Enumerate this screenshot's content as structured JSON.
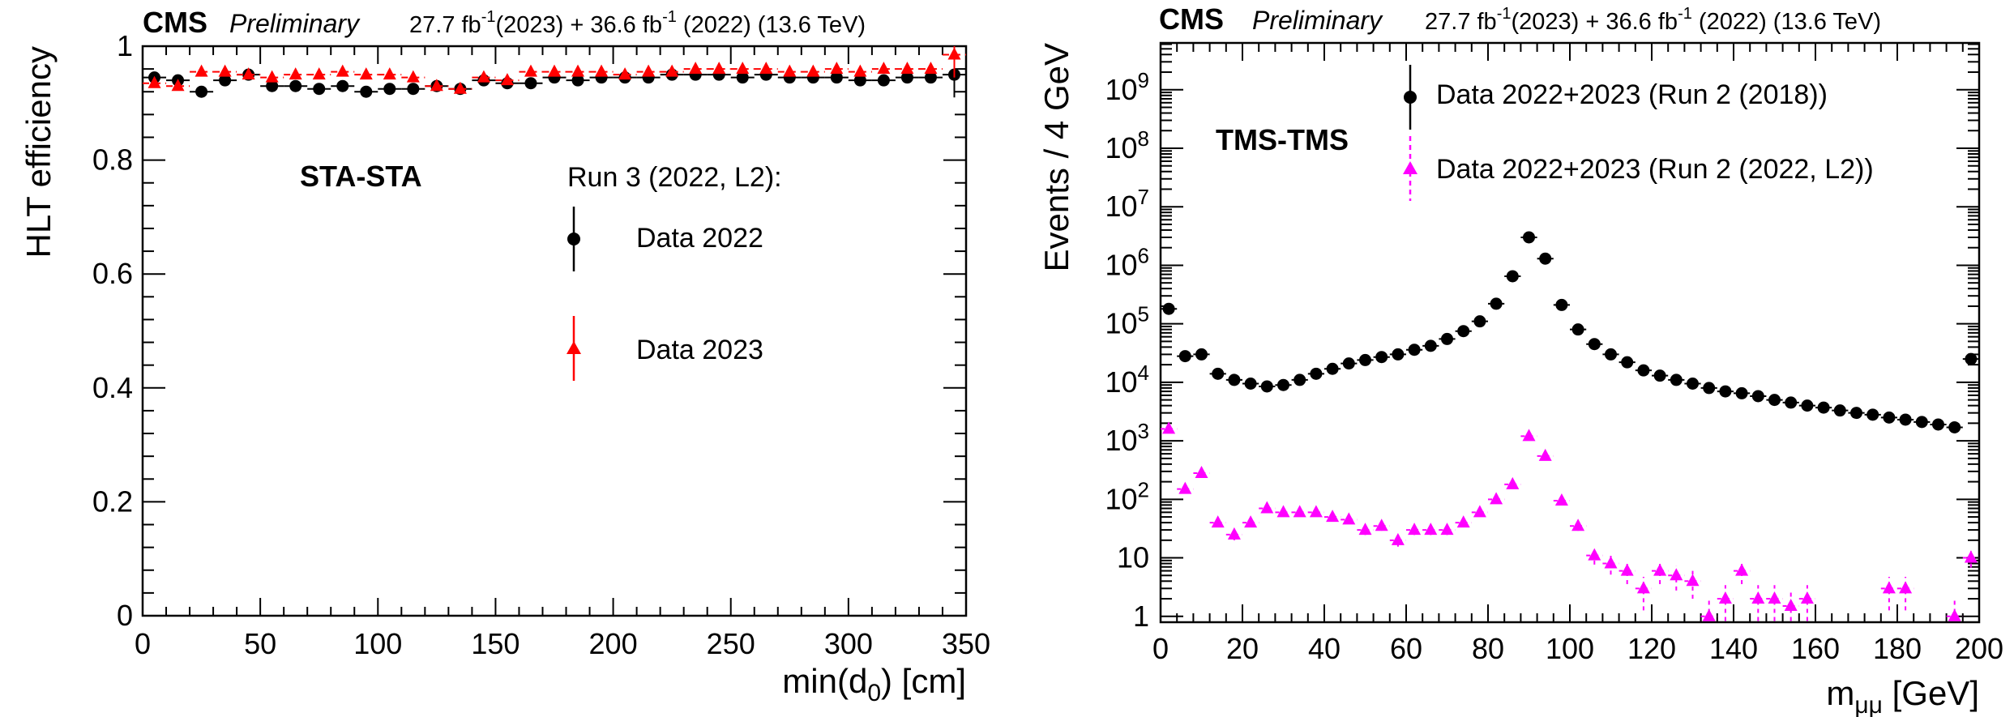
{
  "chart_data": [
    {
      "type": "scatter",
      "header": {
        "experiment": "CMS",
        "status": "Preliminary",
        "lumi": "27.7 fb",
        "lumi_sup": "-1",
        "lumi_rest": "(2023) + 36.6 fb",
        "lumi_sup2": "-1",
        "lumi_tail": " (2022) (13.6 TeV)"
      },
      "xlabel": "min(d",
      "xlabel_sub": "0",
      "xlabel_tail": ") [cm]",
      "ylabel": "HLT efficiency",
      "xlim": [
        0,
        350
      ],
      "ylim": [
        0,
        1
      ],
      "xticks": [
        "0",
        "50",
        "100",
        "150",
        "200",
        "250",
        "300",
        "350"
      ],
      "yticks": [
        "0",
        "0.2",
        "0.4",
        "0.6",
        "0.8",
        "1"
      ],
      "annotation": "STA-STA",
      "legend_title": "Run 3 (2022, L2):",
      "series": [
        {
          "name": "Data 2022",
          "color": "#000000",
          "marker": "circle",
          "x": [
            5,
            15,
            25,
            35,
            45,
            55,
            65,
            75,
            85,
            95,
            105,
            115,
            125,
            135,
            145,
            155,
            165,
            175,
            185,
            195,
            205,
            215,
            225,
            235,
            245,
            255,
            265,
            275,
            285,
            295,
            305,
            315,
            325,
            335,
            345
          ],
          "y": [
            0.945,
            0.94,
            0.92,
            0.94,
            0.95,
            0.93,
            0.93,
            0.925,
            0.93,
            0.92,
            0.925,
            0.925,
            0.93,
            0.925,
            0.94,
            0.935,
            0.935,
            0.945,
            0.94,
            0.945,
            0.945,
            0.945,
            0.95,
            0.95,
            0.95,
            0.945,
            0.95,
            0.945,
            0.945,
            0.945,
            0.94,
            0.94,
            0.945,
            0.945,
            0.95
          ]
        },
        {
          "name": "Data 2023",
          "color": "#ff0000",
          "marker": "triangle",
          "x": [
            5,
            15,
            25,
            35,
            45,
            55,
            65,
            75,
            85,
            95,
            105,
            115,
            125,
            135,
            145,
            155,
            165,
            175,
            185,
            195,
            205,
            215,
            225,
            235,
            245,
            255,
            265,
            275,
            285,
            295,
            305,
            315,
            325,
            335,
            345
          ],
          "y": [
            0.935,
            0.93,
            0.955,
            0.955,
            0.95,
            0.945,
            0.95,
            0.95,
            0.955,
            0.95,
            0.95,
            0.945,
            0.93,
            0.925,
            0.945,
            0.94,
            0.955,
            0.955,
            0.955,
            0.955,
            0.95,
            0.955,
            0.955,
            0.96,
            0.96,
            0.96,
            0.96,
            0.955,
            0.955,
            0.96,
            0.955,
            0.96,
            0.96,
            0.96,
            0.985
          ]
        }
      ]
    },
    {
      "type": "scatter",
      "header": {
        "experiment": "CMS",
        "status": "Preliminary",
        "lumi": "27.7 fb",
        "lumi_sup": "-1",
        "lumi_rest": "(2023) + 36.6 fb",
        "lumi_sup2": "-1",
        "lumi_tail": " (2022) (13.6 TeV)"
      },
      "xlabel": "m",
      "xlabel_sub": "μμ",
      "xlabel_tail": " [GeV]",
      "ylabel": "Events / 4 GeV",
      "xlim": [
        0,
        200
      ],
      "ylim_log10": [
        -0.1,
        9.8
      ],
      "yscale": "log",
      "xticks": [
        "0",
        "20",
        "40",
        "60",
        "80",
        "100",
        "120",
        "140",
        "160",
        "180",
        "200"
      ],
      "yticks": [
        {
          "base": "1",
          "exp": ""
        },
        {
          "base": "10",
          "exp": ""
        },
        {
          "base": "10",
          "exp": "2"
        },
        {
          "base": "10",
          "exp": "3"
        },
        {
          "base": "10",
          "exp": "4"
        },
        {
          "base": "10",
          "exp": "5"
        },
        {
          "base": "10",
          "exp": "6"
        },
        {
          "base": "10",
          "exp": "7"
        },
        {
          "base": "10",
          "exp": "8"
        },
        {
          "base": "10",
          "exp": "9"
        }
      ],
      "annotation": "TMS-TMS",
      "series": [
        {
          "name": "Data 2022+2023 (Run 2 (2018))",
          "color": "#000000",
          "marker": "circle",
          "x": [
            2,
            6,
            10,
            14,
            18,
            22,
            26,
            30,
            34,
            38,
            42,
            46,
            50,
            54,
            58,
            62,
            66,
            70,
            74,
            78,
            82,
            86,
            90,
            94,
            98,
            102,
            106,
            110,
            114,
            118,
            122,
            126,
            130,
            134,
            138,
            142,
            146,
            150,
            154,
            158,
            162,
            166,
            170,
            174,
            178,
            182,
            186,
            190,
            194,
            198
          ],
          "y": [
            180000,
            28000,
            30000,
            14000,
            11000,
            9500,
            8500,
            9000,
            11000,
            14000,
            17000,
            21000,
            24000,
            27000,
            30000,
            36000,
            42000,
            55000,
            75000,
            110000,
            220000,
            650000,
            3000000,
            1300000,
            210000,
            80000,
            45000,
            30000,
            22000,
            16000,
            13000,
            11000,
            9500,
            8000,
            7000,
            6500,
            5800,
            5000,
            4500,
            4000,
            3700,
            3300,
            3000,
            2800,
            2500,
            2300,
            2100,
            1900,
            1700,
            25000
          ]
        },
        {
          "name": "Data 2022+2023 (Run 2 (2022, L2))",
          "color": "#ff00ff",
          "marker": "triangle",
          "x": [
            2,
            6,
            10,
            14,
            18,
            22,
            26,
            30,
            34,
            38,
            42,
            46,
            50,
            54,
            58,
            62,
            66,
            70,
            74,
            78,
            82,
            86,
            90,
            94,
            98,
            102,
            106,
            110,
            114,
            118,
            122,
            126,
            130,
            134,
            138,
            142,
            146,
            150,
            154,
            158,
            178,
            182,
            194,
            198
          ],
          "y": [
            1600,
            150,
            280,
            40,
            25,
            40,
            70,
            60,
            60,
            60,
            50,
            45,
            30,
            35,
            20,
            30,
            30,
            30,
            40,
            60,
            100,
            180,
            1200,
            550,
            95,
            35,
            11,
            8,
            6,
            3,
            6,
            5,
            4,
            1,
            2,
            6,
            2,
            2,
            1.5,
            2,
            3,
            3,
            1,
            10
          ]
        }
      ]
    }
  ]
}
